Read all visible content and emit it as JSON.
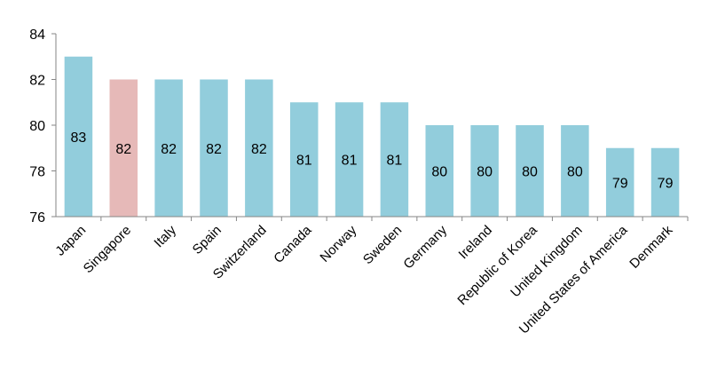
{
  "chart_data": {
    "type": "bar",
    "title": "",
    "xlabel": "",
    "ylabel": "",
    "ylim": [
      76,
      84
    ],
    "yticks": [
      "76",
      "78",
      "80",
      "82",
      "84"
    ],
    "grid": false,
    "legend": "none",
    "categories": [
      "Japan",
      "Singapore",
      "Italy",
      "Spain",
      "Switzerland",
      "Canada",
      "Norway",
      "Sweden",
      "Germany",
      "Ireland",
      "Republic of Korea",
      "United Kingdom",
      "United States of America",
      "Denmark"
    ],
    "values": [
      83,
      82,
      82,
      82,
      82,
      81,
      81,
      81,
      80,
      80,
      80,
      80,
      79,
      79
    ],
    "data_labels": [
      "83",
      "82",
      "82",
      "82",
      "82",
      "81",
      "81",
      "81",
      "80",
      "80",
      "80",
      "80",
      "79",
      "79"
    ],
    "highlight_category": "Singapore",
    "colors": {
      "bar": "#92cddc",
      "highlight": "#e6b9b8",
      "axis": "#868686",
      "text": "#000000"
    }
  }
}
